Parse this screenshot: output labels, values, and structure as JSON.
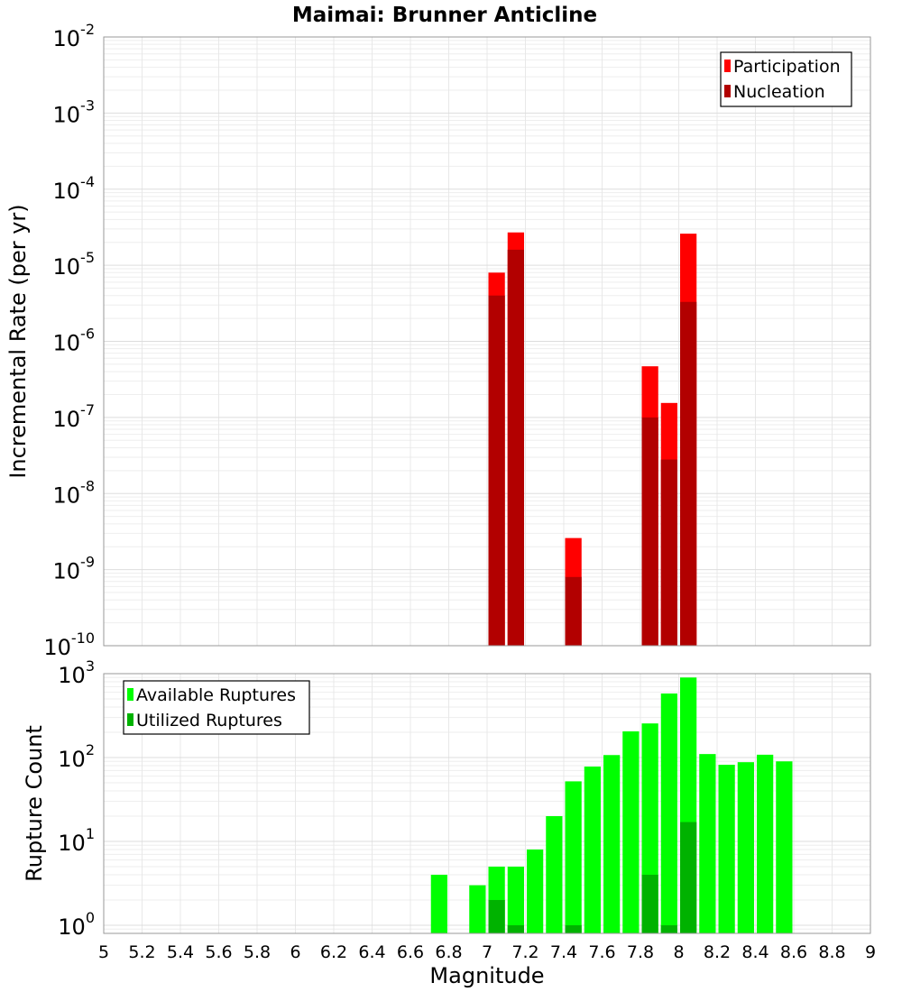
{
  "chart_data": {
    "title": "Maimai: Brunner Anticline",
    "xlabel": "Magnitude",
    "xlim": [
      5,
      9
    ],
    "x_ticks": [
      "5",
      "5.2",
      "5.4",
      "5.6",
      "5.8",
      "6",
      "6.2",
      "6.4",
      "6.6",
      "6.8",
      "7",
      "7.2",
      "7.4",
      "7.6",
      "7.8",
      "8",
      "8.2",
      "8.4",
      "8.6",
      "8.8",
      "9"
    ],
    "panels": [
      {
        "type": "bar",
        "ylabel": "Incremental Rate (per yr)",
        "yscale": "log",
        "ylim": [
          1e-10,
          0.01
        ],
        "y_ticks": [
          {
            "base": "10",
            "exp": "-10"
          },
          {
            "base": "10",
            "exp": "-9"
          },
          {
            "base": "10",
            "exp": "-8"
          },
          {
            "base": "10",
            "exp": "-7"
          },
          {
            "base": "10",
            "exp": "-6"
          },
          {
            "base": "10",
            "exp": "-5"
          },
          {
            "base": "10",
            "exp": "-4"
          },
          {
            "base": "10",
            "exp": "-3"
          },
          {
            "base": "10",
            "exp": "-2"
          }
        ],
        "legend_position": "top-right",
        "series": [
          {
            "name": "Participation",
            "color": "#ff0000",
            "x": [
              7.05,
              7.15,
              7.45,
              7.85,
              7.95,
              8.05
            ],
            "values": [
              8e-06,
              2.7e-05,
              2.6e-09,
              4.7e-07,
              1.55e-07,
              2.6e-05
            ]
          },
          {
            "name": "Nucleation",
            "color": "#b20000",
            "x": [
              7.05,
              7.15,
              7.45,
              7.85,
              7.95,
              8.05
            ],
            "values": [
              4e-06,
              1.6e-05,
              8e-10,
              1e-07,
              2.8e-08,
              3.3e-06
            ]
          }
        ]
      },
      {
        "type": "bar",
        "ylabel": "Rupture Count",
        "yscale": "log",
        "ylim": [
          0.8,
          1000
        ],
        "y_ticks": [
          {
            "base": "10",
            "exp": "0"
          },
          {
            "base": "10",
            "exp": "1"
          },
          {
            "base": "10",
            "exp": "2"
          },
          {
            "base": "10",
            "exp": "3"
          }
        ],
        "legend_position": "top-left",
        "series": [
          {
            "name": "Available Ruptures",
            "color": "#00ff00",
            "x": [
              6.75,
              6.95,
              7.05,
              7.15,
              7.25,
              7.35,
              7.45,
              7.55,
              7.65,
              7.75,
              7.85,
              7.95,
              8.05,
              8.15,
              8.25,
              8.35,
              8.45,
              8.55
            ],
            "values": [
              4,
              3,
              5,
              5,
              8,
              20,
              52,
              78,
              107,
              205,
              255,
              580,
              900,
              110,
              82,
              88,
              108,
              90
            ]
          },
          {
            "name": "Utilized Ruptures",
            "color": "#00b200",
            "x": [
              7.05,
              7.15,
              7.45,
              7.85,
              7.95,
              8.05
            ],
            "values": [
              2,
              1,
              1,
              4,
              1,
              17
            ]
          }
        ]
      }
    ]
  }
}
